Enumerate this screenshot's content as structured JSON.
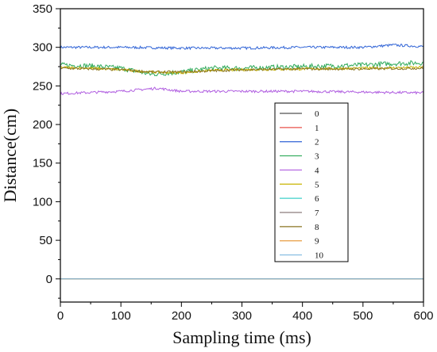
{
  "chart_data": {
    "type": "line",
    "title": "",
    "xlabel": "Sampling time (ms)",
    "ylabel": "Distance(cm)",
    "xlim": [
      0,
      600
    ],
    "ylim": [
      -30,
      350
    ],
    "xticks": [
      0,
      100,
      200,
      300,
      400,
      500,
      600
    ],
    "yticks": [
      0,
      50,
      100,
      150,
      200,
      250,
      300,
      350
    ],
    "grid": false,
    "legend_position": "right-center",
    "series": [
      {
        "name": "0",
        "color": "#505050",
        "values": [
          {
            "x": 0,
            "y": 0
          },
          {
            "x": 600,
            "y": 0
          }
        ]
      },
      {
        "name": "1",
        "color": "#e8524a",
        "values": [
          {
            "x": 0,
            "y": 0
          },
          {
            "x": 600,
            "y": 0
          }
        ]
      },
      {
        "name": "2",
        "color": "#2f63d6",
        "values": [
          {
            "x": 0,
            "y": 300
          },
          {
            "x": 100,
            "y": 300
          },
          {
            "x": 200,
            "y": 299
          },
          {
            "x": 300,
            "y": 299
          },
          {
            "x": 400,
            "y": 300
          },
          {
            "x": 500,
            "y": 300
          },
          {
            "x": 550,
            "y": 303
          },
          {
            "x": 600,
            "y": 301
          }
        ]
      },
      {
        "name": "3",
        "color": "#2eaa5a",
        "values": [
          {
            "x": 0,
            "y": 277
          },
          {
            "x": 50,
            "y": 276
          },
          {
            "x": 100,
            "y": 273
          },
          {
            "x": 150,
            "y": 265
          },
          {
            "x": 200,
            "y": 268
          },
          {
            "x": 250,
            "y": 273
          },
          {
            "x": 300,
            "y": 273
          },
          {
            "x": 350,
            "y": 274
          },
          {
            "x": 400,
            "y": 275
          },
          {
            "x": 450,
            "y": 276
          },
          {
            "x": 500,
            "y": 277
          },
          {
            "x": 550,
            "y": 279
          },
          {
            "x": 600,
            "y": 280
          }
        ]
      },
      {
        "name": "4",
        "color": "#b05ee0",
        "values": [
          {
            "x": 0,
            "y": 240
          },
          {
            "x": 100,
            "y": 243
          },
          {
            "x": 160,
            "y": 247
          },
          {
            "x": 200,
            "y": 243
          },
          {
            "x": 300,
            "y": 243
          },
          {
            "x": 400,
            "y": 243
          },
          {
            "x": 500,
            "y": 242
          },
          {
            "x": 600,
            "y": 241
          }
        ]
      },
      {
        "name": "5",
        "color": "#c8b400",
        "values": [
          {
            "x": 0,
            "y": 274
          },
          {
            "x": 50,
            "y": 273
          },
          {
            "x": 100,
            "y": 271
          },
          {
            "x": 150,
            "y": 268
          },
          {
            "x": 200,
            "y": 267
          },
          {
            "x": 250,
            "y": 270
          },
          {
            "x": 300,
            "y": 271
          },
          {
            "x": 400,
            "y": 272
          },
          {
            "x": 500,
            "y": 273
          },
          {
            "x": 600,
            "y": 274
          }
        ]
      },
      {
        "name": "6",
        "color": "#3fd0c8",
        "values": [
          {
            "x": 0,
            "y": 0
          },
          {
            "x": 600,
            "y": 0
          }
        ]
      },
      {
        "name": "7",
        "color": "#8c7c7c",
        "values": [
          {
            "x": 0,
            "y": 0
          },
          {
            "x": 600,
            "y": 0
          }
        ]
      },
      {
        "name": "8",
        "color": "#8a7420",
        "values": [
          {
            "x": 0,
            "y": 273
          },
          {
            "x": 100,
            "y": 271
          },
          {
            "x": 150,
            "y": 268
          },
          {
            "x": 200,
            "y": 268
          },
          {
            "x": 300,
            "y": 271
          },
          {
            "x": 400,
            "y": 272
          },
          {
            "x": 500,
            "y": 272
          },
          {
            "x": 600,
            "y": 273
          }
        ]
      },
      {
        "name": "9",
        "color": "#e89c40",
        "values": [
          {
            "x": 0,
            "y": 0
          },
          {
            "x": 600,
            "y": 0
          }
        ]
      },
      {
        "name": "10",
        "color": "#7fb8e0",
        "values": [
          {
            "x": 0,
            "y": 0
          },
          {
            "x": 600,
            "y": 0
          }
        ]
      }
    ]
  }
}
